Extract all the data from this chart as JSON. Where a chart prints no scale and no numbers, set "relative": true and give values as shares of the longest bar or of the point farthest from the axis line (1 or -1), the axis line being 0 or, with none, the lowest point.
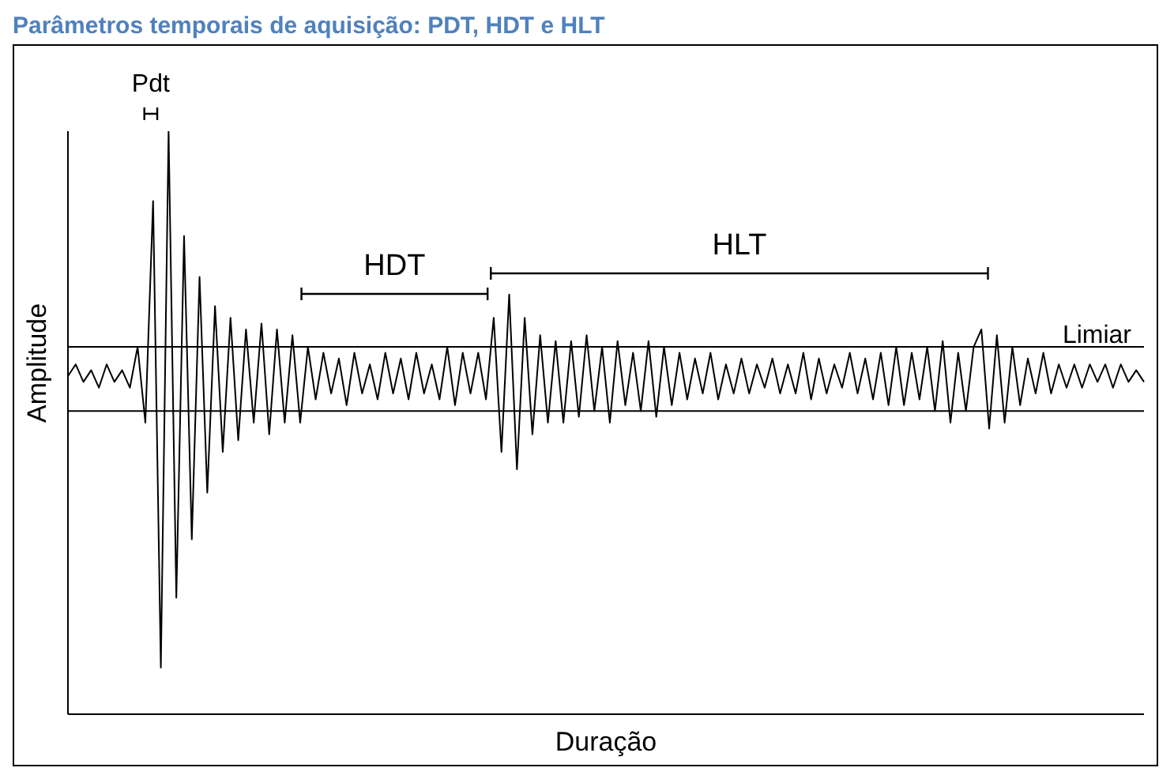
{
  "chart_data": {
    "type": "line",
    "title": "Parâmetros temporais de aquisição: PDT, HDT e HLT",
    "xlabel": "Duração",
    "ylabel": "Amplitude",
    "relative": true,
    "categories": [
      null,
      null,
      null,
      null,
      null,
      null,
      null,
      null,
      null,
      null,
      null,
      null,
      null,
      null,
      null,
      null,
      null,
      null,
      null,
      null,
      null,
      null,
      null,
      null,
      null,
      null,
      null,
      null,
      null,
      null,
      null,
      null,
      null,
      null,
      null,
      null,
      null,
      null,
      null,
      null,
      null,
      null,
      null,
      null,
      null,
      null,
      null,
      null,
      null,
      null,
      null,
      null,
      null,
      null,
      null,
      null,
      null,
      null,
      null,
      null,
      null,
      null,
      null,
      null,
      null,
      null,
      null,
      null,
      null,
      null,
      null,
      null,
      null,
      null,
      null,
      null,
      null,
      null,
      null,
      null,
      null,
      null,
      null,
      null,
      null,
      null,
      null,
      null,
      null,
      null,
      null,
      null,
      null,
      null,
      null,
      null,
      null,
      null,
      null,
      null,
      null,
      null,
      null,
      null,
      null,
      null,
      null,
      null,
      null,
      null,
      null,
      null,
      null,
      null,
      null,
      null,
      null,
      null,
      null,
      null,
      null,
      null,
      null,
      null,
      null,
      null,
      null,
      null,
      null,
      null,
      null,
      null,
      null,
      null,
      null,
      null,
      null,
      null,
      null,
      null
    ],
    "series": [
      {
        "color": "#000000",
        "values": [
          0.58,
          0.6,
          0.57,
          0.59,
          0.56,
          0.6,
          0.57,
          0.59,
          0.56,
          0.63,
          0.5,
          0.88,
          0.08,
          1.0,
          0.2,
          0.82,
          0.3,
          0.75,
          0.38,
          0.7,
          0.45,
          0.68,
          0.47,
          0.66,
          0.5,
          0.67,
          0.48,
          0.66,
          0.5,
          0.65,
          0.5,
          0.63,
          0.54,
          0.62,
          0.55,
          0.61,
          0.53,
          0.62,
          0.55,
          0.6,
          0.54,
          0.62,
          0.55,
          0.61,
          0.54,
          0.62,
          0.55,
          0.6,
          0.54,
          0.63,
          0.53,
          0.62,
          0.55,
          0.62,
          0.54,
          0.68,
          0.45,
          0.72,
          0.42,
          0.68,
          0.48,
          0.65,
          0.5,
          0.64,
          0.5,
          0.64,
          0.51,
          0.65,
          0.52,
          0.63,
          0.5,
          0.64,
          0.53,
          0.62,
          0.52,
          0.64,
          0.51,
          0.63,
          0.53,
          0.62,
          0.54,
          0.61,
          0.55,
          0.62,
          0.54,
          0.6,
          0.55,
          0.61,
          0.55,
          0.6,
          0.56,
          0.61,
          0.55,
          0.6,
          0.55,
          0.62,
          0.54,
          0.61,
          0.55,
          0.6,
          0.56,
          0.62,
          0.55,
          0.61,
          0.54,
          0.62,
          0.53,
          0.63,
          0.53,
          0.62,
          0.54,
          0.63,
          0.52,
          0.64,
          0.5,
          0.62,
          0.52,
          0.63,
          0.66,
          0.49,
          0.65,
          0.5,
          0.63,
          0.53,
          0.61,
          0.55,
          0.62,
          0.55,
          0.6,
          0.56,
          0.6,
          0.56,
          0.6,
          0.57,
          0.6,
          0.56,
          0.6,
          0.57,
          0.59,
          0.57
        ]
      }
    ],
    "ref_lines": [
      {
        "axis": "y",
        "value": 0.63,
        "label": "Limiar",
        "color": "#000000"
      },
      {
        "axis": "y",
        "value": 0.52,
        "color": "#000000"
      }
    ],
    "annotations": [
      "Pdt",
      "HDT",
      "HLT"
    ]
  }
}
